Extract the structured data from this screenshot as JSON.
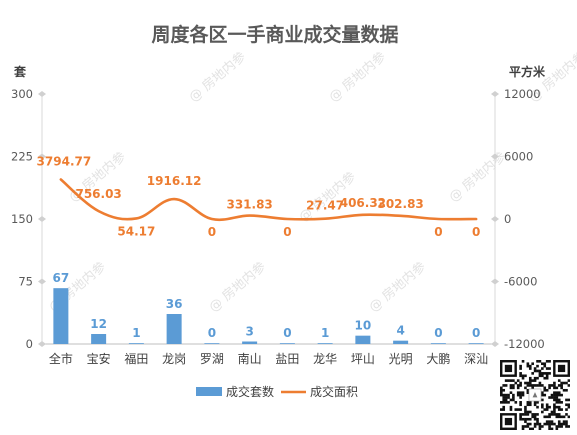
{
  "chart_data": {
    "type": "bar+line",
    "title": "周度各区一手商业成交量数据",
    "categories": [
      "全市",
      "宝安",
      "福田",
      "龙岗",
      "罗湖",
      "南山",
      "盐田",
      "龙华",
      "坪山",
      "光明",
      "大鹏",
      "深汕"
    ],
    "series": [
      {
        "name": "成交套数",
        "type": "bar",
        "axis": "left",
        "color": "#5b9bd5",
        "values": [
          67,
          12,
          1,
          36,
          0,
          3,
          0,
          1,
          10,
          4,
          0,
          0
        ]
      },
      {
        "name": "成交面积",
        "type": "line",
        "axis": "right",
        "color": "#ed7d31",
        "values": [
          3794.77,
          756.03,
          54.17,
          1916.12,
          0,
          331.83,
          0,
          27.47,
          406.32,
          302.83,
          0,
          0
        ],
        "labels": [
          "3794.77",
          "756.03",
          "54.17",
          "1916.12",
          "0",
          "331.83",
          "0",
          "27.47",
          "406.32",
          "302.83",
          "0",
          "0"
        ]
      }
    ],
    "left_axis": {
      "unit": "套",
      "ticks": [
        0,
        75,
        150,
        225,
        300
      ],
      "ylim": [
        0,
        300
      ]
    },
    "right_axis": {
      "unit": "平方米",
      "ticks": [
        -12000,
        -6000,
        0,
        6000,
        12000
      ],
      "ylim": [
        -12000,
        12000
      ]
    },
    "legend": {
      "position": "bottom"
    },
    "grid": false
  },
  "watermark": "@ 房地内参"
}
